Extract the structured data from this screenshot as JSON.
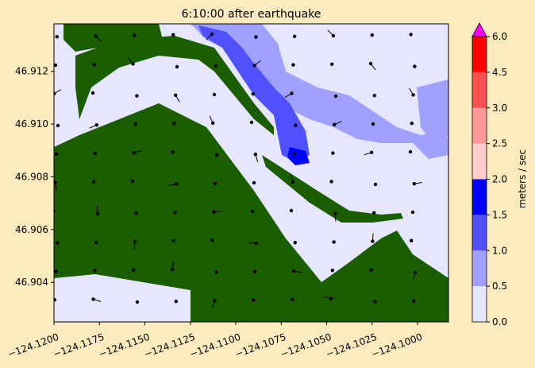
{
  "chart_data": {
    "type": "heatmap",
    "title": "6:10:00 after earthquake",
    "xlabel": "",
    "ylabel": "",
    "xlim": [
      -124.12,
      -124.0983
    ],
    "ylim": [
      46.9025,
      46.9138
    ],
    "x_ticks": [
      -124.12,
      -124.1175,
      -124.115,
      -124.1125,
      -124.11,
      -124.1075,
      -124.105,
      -124.1025,
      -124.1
    ],
    "x_tick_labels": [
      "−124.1200",
      "−124.1175",
      "−124.1150",
      "−124.1125",
      "−124.1100",
      "−124.1075",
      "−124.1050",
      "−124.1025",
      "−124.1000"
    ],
    "y_ticks": [
      46.904,
      46.906,
      46.908,
      46.91,
      46.912
    ],
    "y_tick_labels": [
      "46.904",
      "46.906",
      "46.908",
      "46.910",
      "46.912"
    ],
    "colorbar": {
      "label": "meters / sec",
      "levels": [
        0.0,
        0.5,
        1.0,
        1.5,
        2.0,
        2.5,
        3.0,
        4.5,
        6.0
      ],
      "tick_labels": [
        "0.0",
        "0.5",
        "1.0",
        "1.5",
        "2.0",
        "2.5",
        "3.0",
        "4.5",
        "6.0"
      ],
      "colors": [
        "#e6e6ff",
        "#a0a0ff",
        "#5050ff",
        "#0000ff",
        "#ffcccc",
        "#ff9999",
        "#ff5050",
        "#ff0000"
      ],
      "extend_max_color": "#ff00ff"
    },
    "land_color": "#1a5e00",
    "water_base_color": "#e6e6ff",
    "grid": false
  }
}
